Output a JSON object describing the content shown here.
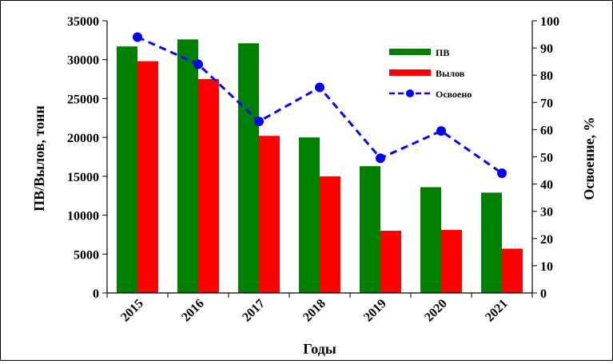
{
  "chart_data": {
    "type": "bar",
    "categories": [
      "2015",
      "2016",
      "2017",
      "2018",
      "2019",
      "2020",
      "2021"
    ],
    "series": [
      {
        "name": "ПВ",
        "kind": "bar",
        "axis": "left",
        "color": "#008000",
        "values": [
          31700,
          32600,
          32100,
          20000,
          16300,
          13600,
          12900
        ]
      },
      {
        "name": "Вылов",
        "kind": "bar",
        "axis": "left",
        "color": "#ff0000",
        "values": [
          29800,
          27500,
          20200,
          15000,
          8000,
          8100,
          5700
        ]
      },
      {
        "name": "Освоено",
        "kind": "line",
        "axis": "right",
        "color": "#0000ff",
        "values": [
          94,
          84,
          63,
          75.5,
          49.5,
          59.5,
          44
        ]
      }
    ],
    "xlabel": "Годы",
    "ylabel": "ПВ/Вылов, тонн",
    "y2label": "Освоение, %",
    "ylim": [
      0,
      35000
    ],
    "yticks": [
      0,
      5000,
      10000,
      15000,
      20000,
      25000,
      30000,
      35000
    ],
    "y2lim": [
      0,
      100
    ],
    "y2ticks": [
      0,
      10,
      20,
      30,
      40,
      50,
      60,
      70,
      80,
      90,
      100
    ],
    "grid": false,
    "legend_position": "top-right"
  }
}
